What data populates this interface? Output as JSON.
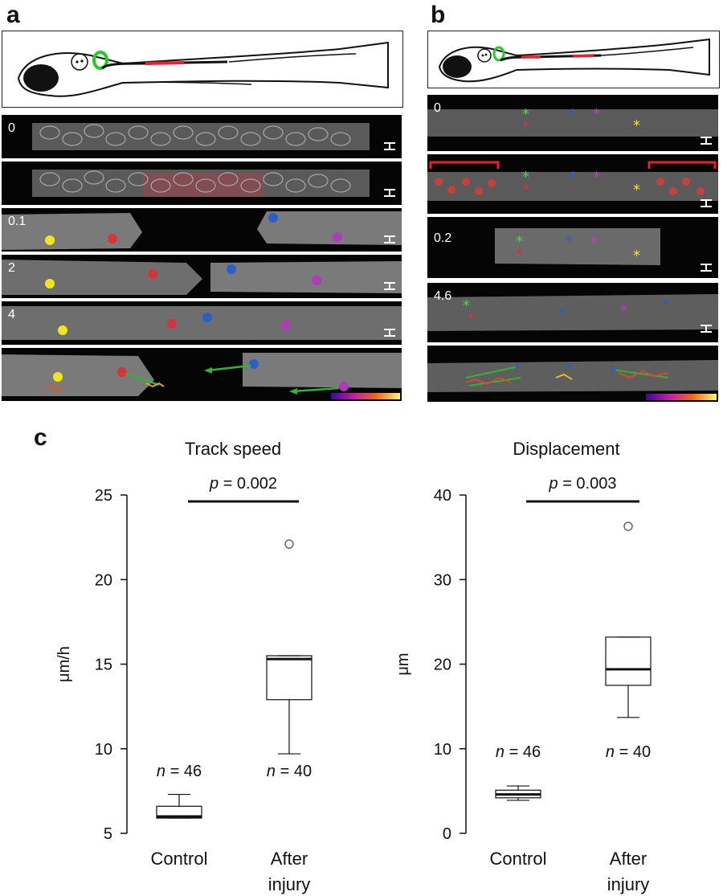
{
  "panels": {
    "a": {
      "letter": "a",
      "frames": [
        "0",
        "",
        "0.1",
        "2",
        "4",
        ""
      ]
    },
    "b": {
      "letter": "b",
      "frames": [
        "0",
        "",
        "0.2",
        "4.6",
        ""
      ]
    },
    "c": {
      "letter": "c"
    }
  },
  "chart_data": [
    {
      "type": "box",
      "title": "Track speed",
      "ylabel": "μm/h",
      "ylim": [
        5,
        25
      ],
      "yticks": [
        "5",
        "10",
        "15",
        "20",
        "25"
      ],
      "categories": [
        "Control",
        "After injury"
      ],
      "boxes": [
        {
          "category": "Control",
          "whisker_low": 5.9,
          "q1": 5.9,
          "median": 6.0,
          "q3": 6.6,
          "whisker_high": 7.3,
          "outliers": [],
          "n_label": "n = 46"
        },
        {
          "category": "After injury",
          "whisker_low": 9.7,
          "q1": 12.9,
          "median": 15.3,
          "q3": 15.5,
          "whisker_high": 15.5,
          "outliers": [
            22.1
          ],
          "n_label": "n = 40"
        }
      ],
      "significance": {
        "text": "p = 0.002",
        "p_label": "p",
        "value": "= 0.002"
      }
    },
    {
      "type": "box",
      "title": "Displacement",
      "ylabel": "μm",
      "ylim": [
        0,
        40
      ],
      "yticks": [
        "0",
        "10",
        "20",
        "30",
        "40"
      ],
      "categories": [
        "Control",
        "After injury"
      ],
      "boxes": [
        {
          "category": "Control",
          "whisker_low": 3.9,
          "q1": 4.2,
          "median": 4.6,
          "q3": 5.1,
          "whisker_high": 5.6,
          "outliers": [],
          "n_label": "n = 46"
        },
        {
          "category": "After injury",
          "whisker_low": 13.7,
          "q1": 17.5,
          "median": 19.4,
          "q3": 23.2,
          "whisker_high": 23.2,
          "outliers": [
            36.3
          ],
          "n_label": "n = 40"
        }
      ],
      "significance": {
        "text": "p = 0.003",
        "p_label": "p",
        "value": "= 0.003"
      }
    }
  ],
  "category_lines": {
    "Control": [
      "Control"
    ],
    "After injury": [
      "After",
      "injury"
    ]
  },
  "colors": {
    "eye_green": "#22cc22",
    "injury_red": "#e8202a",
    "marker_yellow": "#f2e51a",
    "marker_red": "#d8323a",
    "marker_blue": "#2a5fc8",
    "marker_magenta": "#b03ab8",
    "marker_green": "#44dd44",
    "track_arrow": "#2fb52f"
  }
}
